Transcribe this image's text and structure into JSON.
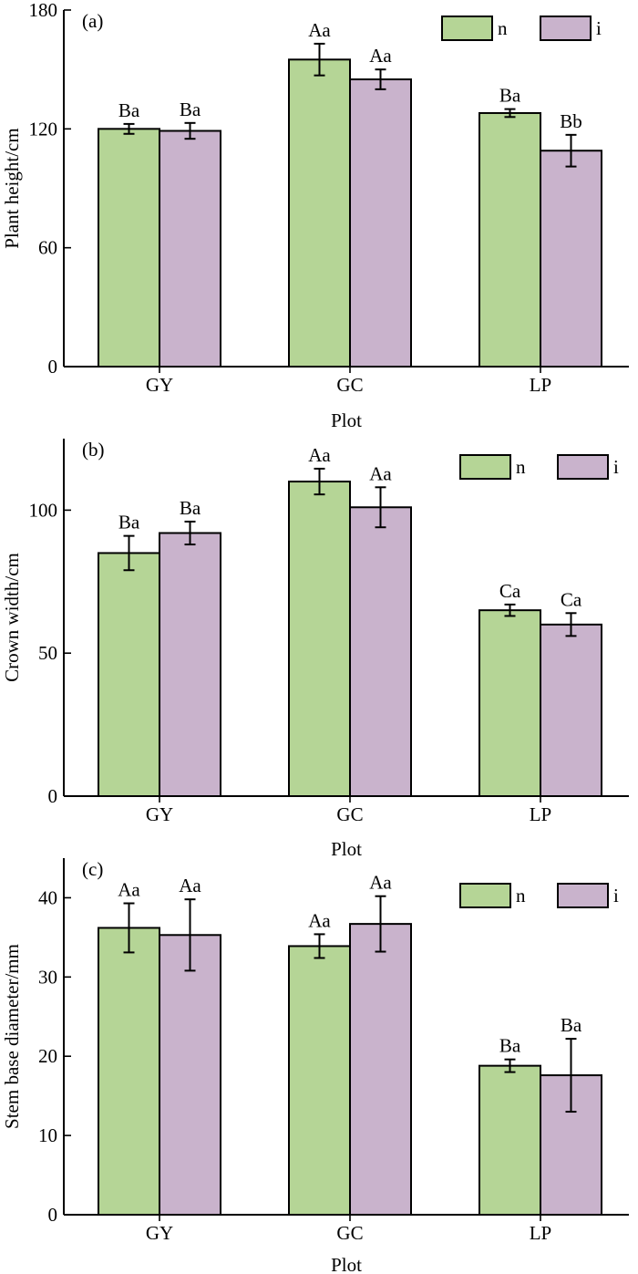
{
  "colors": {
    "n": "#b5d596",
    "i": "#c9b3cc"
  },
  "chart_data": [
    {
      "type": "bar",
      "panel_label": "(a)",
      "categories": [
        "GY",
        "GC",
        "LP"
      ],
      "xlabel": "Plot",
      "ylabel": "Plant height/cm",
      "ylim": [
        0,
        180
      ],
      "yticks": [
        0,
        60,
        120,
        180
      ],
      "legend_position": "top-right",
      "series": [
        {
          "name": "n",
          "values": [
            120,
            155,
            128
          ],
          "errors": [
            2.5,
            8,
            2
          ],
          "letters": [
            "Ba",
            "Aa",
            "Ba"
          ]
        },
        {
          "name": "i",
          "values": [
            119,
            145,
            109
          ],
          "errors": [
            4,
            5,
            8
          ],
          "letters": [
            "Ba",
            "Aa",
            "Bb"
          ]
        }
      ]
    },
    {
      "type": "bar",
      "panel_label": "(b)",
      "categories": [
        "GY",
        "GC",
        "LP"
      ],
      "xlabel": "Plot",
      "ylabel": "Crown width/cm",
      "ylim": [
        0,
        125
      ],
      "yticks": [
        0,
        50,
        100
      ],
      "legend_position": "top-right",
      "series": [
        {
          "name": "n",
          "values": [
            85,
            110,
            65
          ],
          "errors": [
            6,
            4.5,
            2
          ],
          "letters": [
            "Ba",
            "Aa",
            "Ca"
          ]
        },
        {
          "name": "i",
          "values": [
            92,
            101,
            60
          ],
          "errors": [
            4,
            7,
            4
          ],
          "letters": [
            "Ba",
            "Aa",
            "Ca"
          ]
        }
      ]
    },
    {
      "type": "bar",
      "panel_label": "(c)",
      "categories": [
        "GY",
        "GC",
        "LP"
      ],
      "xlabel": "Plot",
      "ylabel": "Stem base diameter/mm",
      "ylim": [
        0,
        45
      ],
      "yticks": [
        0,
        10,
        20,
        30,
        40
      ],
      "legend_position": "top-right",
      "series": [
        {
          "name": "n",
          "values": [
            36.2,
            33.9,
            18.8
          ],
          "errors": [
            3.1,
            1.5,
            0.8
          ],
          "letters": [
            "Aa",
            "Aa",
            "Ba"
          ]
        },
        {
          "name": "i",
          "values": [
            35.3,
            36.7,
            17.6
          ],
          "errors": [
            4.5,
            3.5,
            4.6
          ],
          "letters": [
            "Aa",
            "Aa",
            "Ba"
          ]
        }
      ]
    }
  ]
}
